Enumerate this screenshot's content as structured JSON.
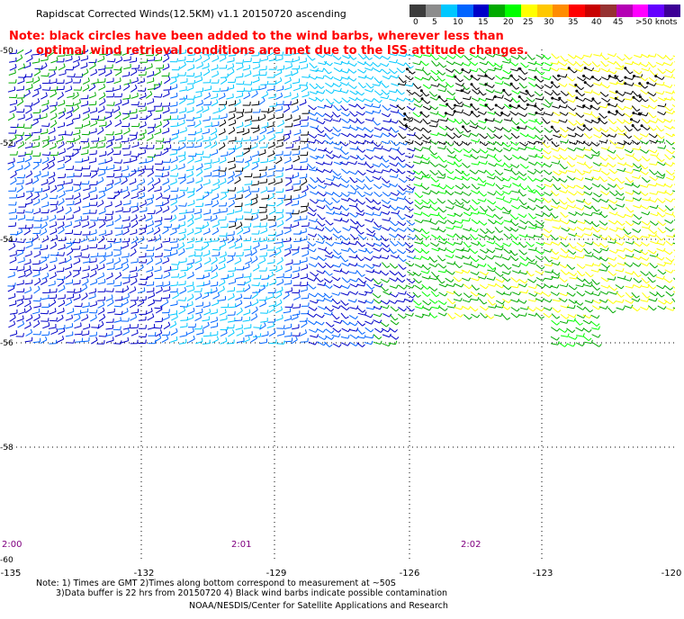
{
  "title": "Rapidscat Corrected Winds(12.5KM) v1.1 20150720 ascending",
  "note_line1": "Note: black circles have been added to the wind barbs, wherever less than",
  "note_line2": "optimal wind retrieval conditions are met due to the ISS attitude changes.",
  "color_scale": {
    "labels": [
      "0",
      "5",
      "10",
      "15",
      "20",
      "25",
      "30",
      "35",
      "40",
      "45",
      ">50 knots"
    ],
    "colors": [
      "#3c3c3c",
      "#8c8c8c",
      "#00c8ff",
      "#0064ff",
      "#0000c8",
      "#00aa00",
      "#00ff00",
      "#ffff00",
      "#ffc800",
      "#ff8c00",
      "#ff0000",
      "#c80000",
      "#963232",
      "#b400b4",
      "#ff00ff",
      "#6400ff",
      "#3c0096"
    ]
  },
  "lat_labels": [
    "-50",
    "-52",
    "-54",
    "-56",
    "-58",
    "-60"
  ],
  "time_labels": [
    "2:00",
    "2:01",
    "2:02"
  ],
  "lon_labels": [
    "-135",
    "-132",
    "-129",
    "-126",
    "-123",
    "-120"
  ],
  "footer": {
    "line1": "Note: 1) Times are GMT 2)Times along bottom correspond to measurement at ~50S",
    "line2": "3)Data buffer is 22 hrs from 20150720 4) Black wind barbs indicate possible contamination",
    "line3": "NOAA/NESDIS/Center for Satellite Applications and Research"
  }
}
